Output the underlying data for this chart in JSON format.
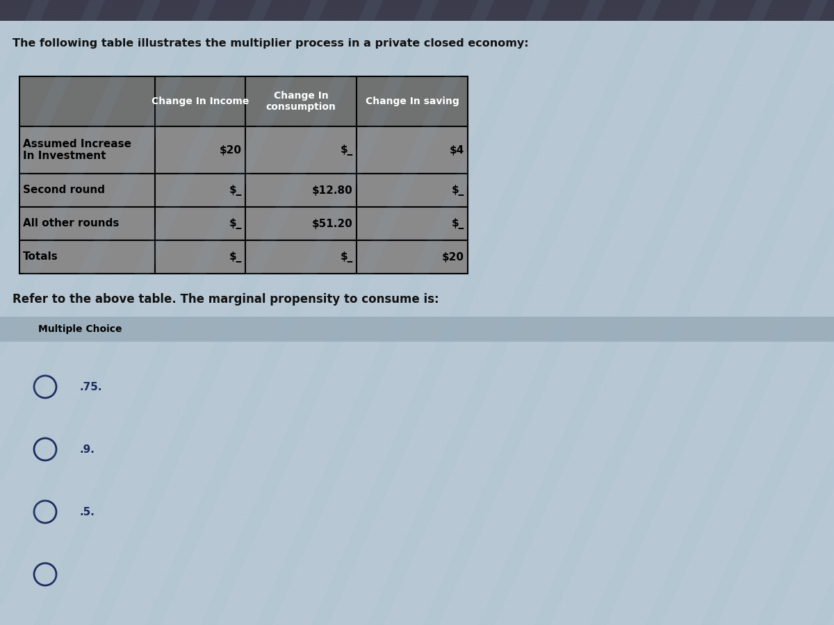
{
  "title": "The following table illustrates the multiplier process in a private closed economy:",
  "title_fontsize": 11.5,
  "bg_color_top": "#4a4a5a",
  "bg_color_main": "#b8c8d8",
  "table_cell_bg": "#909090",
  "table_header_bg": "#606060",
  "col_headers": [
    "",
    "Change In Income",
    "Change In\nconsumption",
    "Change In saving"
  ],
  "rows": [
    [
      "Assumed Increase\nIn Investment",
      "$20",
      "$_",
      "$4"
    ],
    [
      "Second round",
      "$_",
      "$12.80",
      "$_"
    ],
    [
      "All other rounds",
      "$_",
      "$51.20",
      "$_"
    ],
    [
      "Totals",
      "$_",
      "$_",
      "$20"
    ]
  ],
  "question": "Refer to the above table. The marginal propensity to consume is:",
  "question_fontsize": 12,
  "mc_label": "Multiple Choice",
  "mc_fontsize": 10,
  "choices": [
    ".75.",
    ".9.",
    ".5."
  ],
  "choice_fontsize": 11,
  "circle_color": "#1a2a5e",
  "text_color_dark": "#000000",
  "mc_band_color": "#9aabb8"
}
